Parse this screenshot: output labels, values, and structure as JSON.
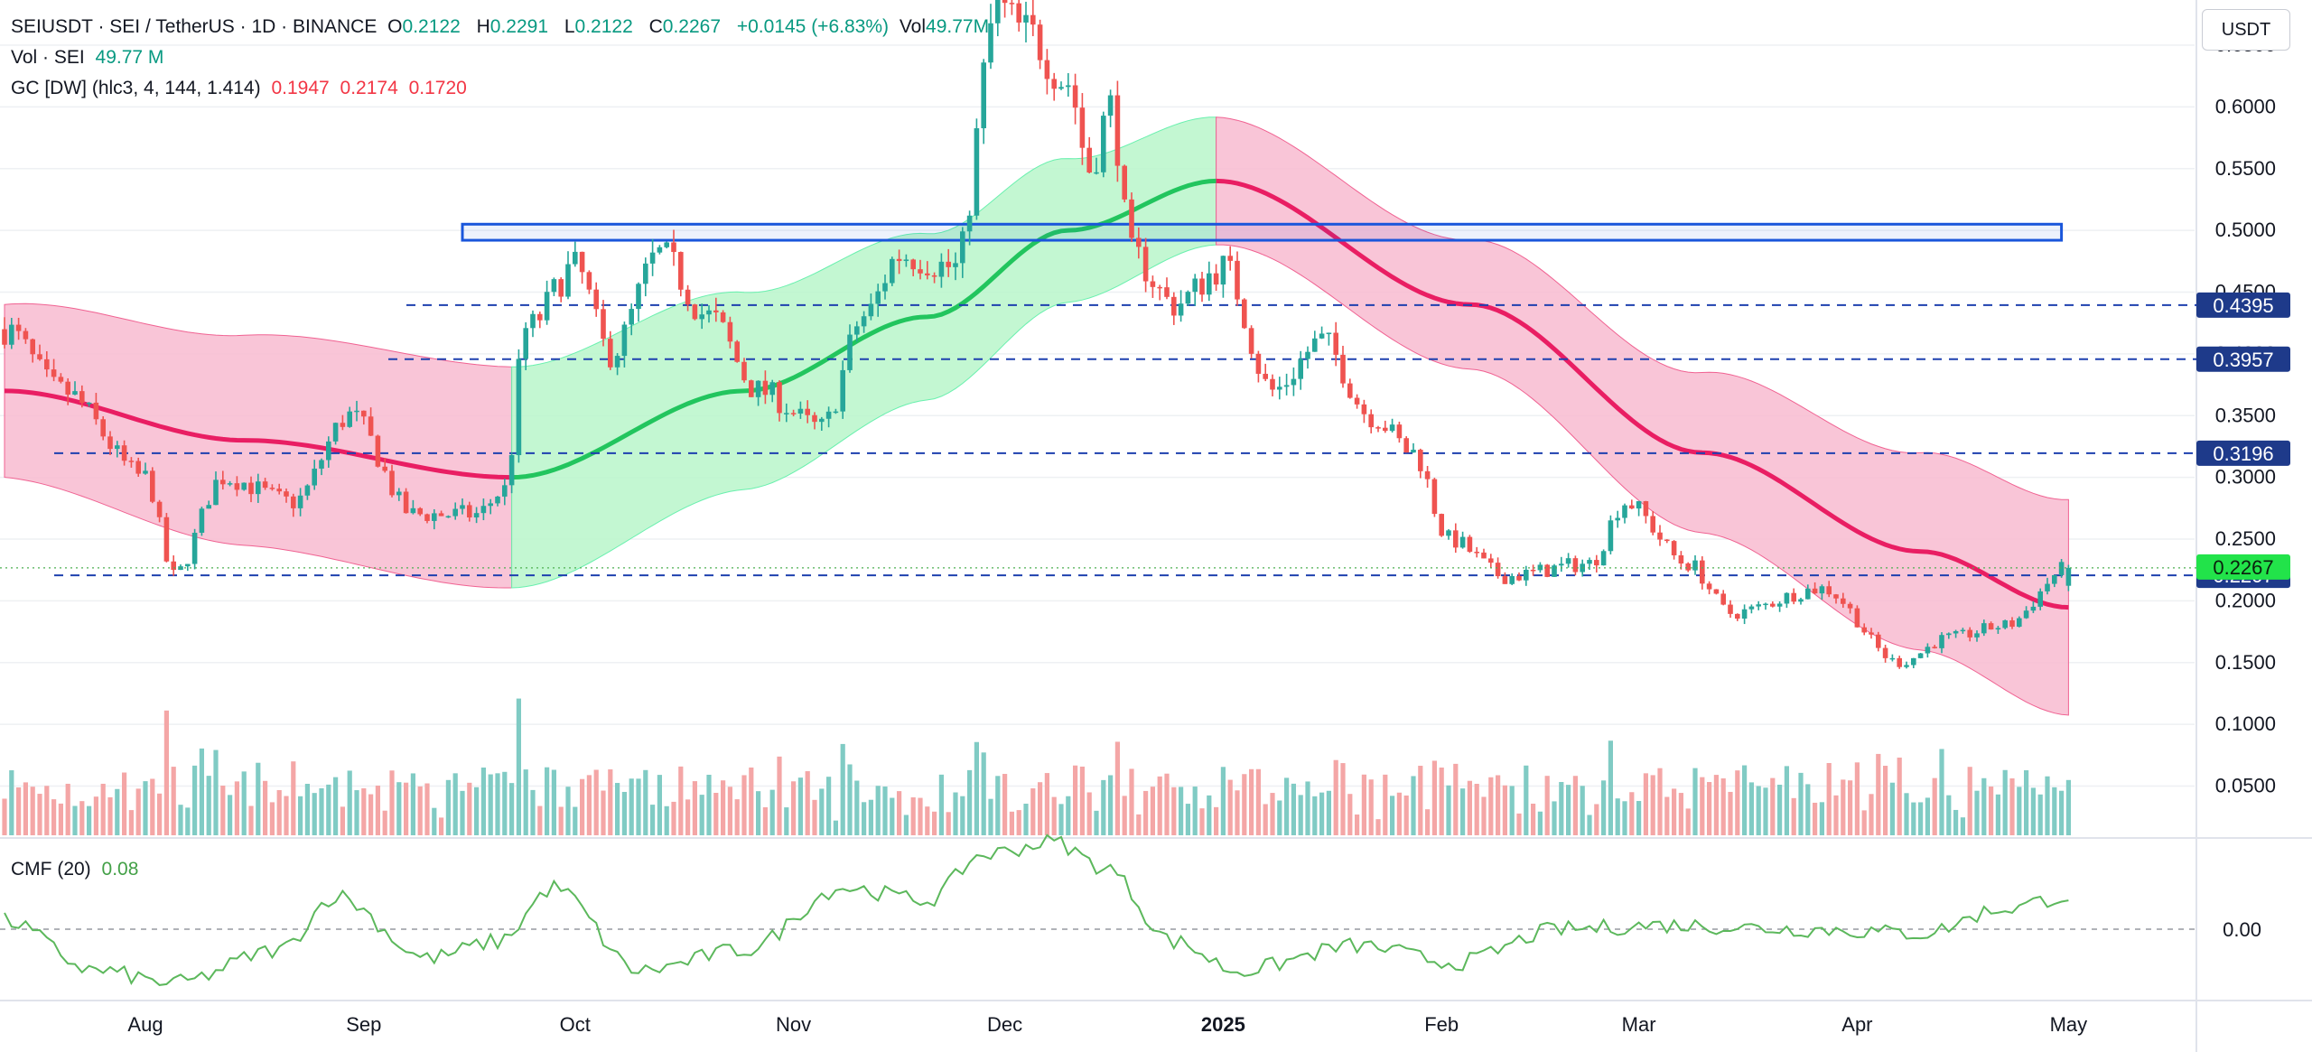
{
  "legend": {
    "symbol": "SEIUSDT · SEI / TetherUS · 1D · BINANCE",
    "o_label": "O",
    "o_val": "0.2122",
    "h_label": "H",
    "h_val": "0.2291",
    "l_label": "L",
    "l_val": "0.2122",
    "c_label": "C",
    "c_val": "0.2267",
    "change": "+0.0145 (+6.83%)",
    "vol_label": "Vol",
    "vol_val": "49.77M",
    "vol_line_label": "Vol · SEI",
    "vol_line_val": "49.77 M",
    "gc_label": "GC [DW] (hlc3, 4, 144, 1.414)",
    "gc_v1": "0.1947",
    "gc_v2": "0.2174",
    "gc_v3": "0.1720",
    "cmf_label": "CMF (20)",
    "cmf_val": "0.08"
  },
  "currency_button": "USDT",
  "colors": {
    "up": "#26a69a",
    "down": "#ef5350",
    "vol_up": "#80cbc4",
    "vol_down": "#f4a6a6",
    "band_red": "#f8bbd0",
    "mid_red": "#e91e63",
    "band_green": "#b9f6ca",
    "mid_green": "#22c55e",
    "level": "#1e40af",
    "zone": "#1a56db",
    "cmf": "#5cb85c",
    "price_tag_green": "#22e34a"
  },
  "chart_data": {
    "type": "candlestick",
    "symbol": "SEIUSDT",
    "interval": "1D",
    "y_axis_scale": "linear",
    "ylim": [
      0.05,
      0.69
    ],
    "y_ticks": [
      "0.6500",
      "0.6000",
      "0.5500",
      "0.5000",
      "0.4500",
      "0.4000",
      "0.3500",
      "0.3000",
      "0.2500",
      "0.2000",
      "0.1500",
      "0.1000",
      "0.0500"
    ],
    "x_ticks": [
      "Aug",
      "Sep",
      "Oct",
      "Nov",
      "Dec",
      "2025",
      "Feb",
      "Mar",
      "Apr",
      "May"
    ],
    "date_range": [
      "2024-07-12",
      "2025-05-01"
    ],
    "price_path_anchors": [
      [
        "2024-07-12",
        0.42
      ],
      [
        "2024-07-20",
        0.37
      ],
      [
        "2024-08-01",
        0.3
      ],
      [
        "2024-08-05",
        0.22
      ],
      [
        "2024-08-12",
        0.3
      ],
      [
        "2024-08-22",
        0.28
      ],
      [
        "2024-08-30",
        0.35
      ],
      [
        "2024-09-08",
        0.27
      ],
      [
        "2024-09-17",
        0.27
      ],
      [
        "2024-09-21",
        0.29
      ],
      [
        "2024-09-24",
        0.42
      ],
      [
        "2024-10-01",
        0.47
      ],
      [
        "2024-10-06",
        0.4
      ],
      [
        "2024-10-13",
        0.48
      ],
      [
        "2024-10-20",
        0.43
      ],
      [
        "2024-10-27",
        0.37
      ],
      [
        "2024-11-05",
        0.34
      ],
      [
        "2024-11-11",
        0.43
      ],
      [
        "2024-11-16",
        0.48
      ],
      [
        "2024-11-24",
        0.47
      ],
      [
        "2024-11-30",
        0.68
      ],
      [
        "2024-12-04",
        0.66
      ],
      [
        "2024-12-10",
        0.62
      ],
      [
        "2024-12-13",
        0.55
      ],
      [
        "2024-12-16",
        0.6
      ],
      [
        "2024-12-19",
        0.48
      ],
      [
        "2024-12-25",
        0.44
      ],
      [
        "2025-01-01",
        0.47
      ],
      [
        "2025-01-08",
        0.37
      ],
      [
        "2025-01-15",
        0.41
      ],
      [
        "2025-01-22",
        0.35
      ],
      [
        "2025-01-28",
        0.32
      ],
      [
        "2025-02-02",
        0.25
      ],
      [
        "2025-02-10",
        0.22
      ],
      [
        "2025-02-22",
        0.23
      ],
      [
        "2025-02-27",
        0.28
      ],
      [
        "2025-03-08",
        0.23
      ],
      [
        "2025-03-14",
        0.19
      ],
      [
        "2025-03-27",
        0.21
      ],
      [
        "2025-04-07",
        0.15
      ],
      [
        "2025-04-14",
        0.17
      ],
      [
        "2025-04-22",
        0.18
      ],
      [
        "2025-05-01",
        0.2267
      ]
    ],
    "gaussian_channel": {
      "mid_anchors": [
        [
          "2024-07-12",
          0.37
        ],
        [
          "2024-08-15",
          0.33
        ],
        [
          "2024-09-22",
          0.3
        ],
        [
          "2024-10-25",
          0.37
        ],
        [
          "2024-11-20",
          0.43
        ],
        [
          "2024-12-10",
          0.5
        ],
        [
          "2024-12-31",
          0.54
        ],
        [
          "2025-02-05",
          0.44
        ],
        [
          "2025-03-10",
          0.32
        ],
        [
          "2025-04-10",
          0.24
        ],
        [
          "2025-05-01",
          0.1947
        ]
      ],
      "bull_range": [
        "2024-09-22",
        "2024-12-31"
      ]
    },
    "cmf": {
      "label": "CMF (20)",
      "last": 0.08,
      "anchors": [
        [
          "2024-07-12",
          0.02
        ],
        [
          "2024-07-25",
          -0.1
        ],
        [
          "2024-08-05",
          -0.13
        ],
        [
          "2024-08-20",
          -0.05
        ],
        [
          "2024-08-28",
          0.08
        ],
        [
          "2024-09-10",
          -0.07
        ],
        [
          "2024-09-20",
          -0.03
        ],
        [
          "2024-09-28",
          0.1
        ],
        [
          "2024-10-10",
          -0.1
        ],
        [
          "2024-10-25",
          -0.05
        ],
        [
          "2024-11-08",
          0.1
        ],
        [
          "2024-11-20",
          0.07
        ],
        [
          "2024-11-28",
          0.18
        ],
        [
          "2024-12-08",
          0.21
        ],
        [
          "2024-12-15",
          0.15
        ],
        [
          "2024-12-25",
          -0.03
        ],
        [
          "2025-01-03",
          -0.1
        ],
        [
          "2025-01-20",
          -0.04
        ],
        [
          "2025-02-03",
          -0.08
        ],
        [
          "2025-02-18",
          0.0
        ],
        [
          "2025-03-05",
          0.01
        ],
        [
          "2025-03-25",
          0.0
        ],
        [
          "2025-04-10",
          -0.01
        ],
        [
          "2025-04-22",
          0.05
        ],
        [
          "2025-05-01",
          0.08
        ]
      ]
    },
    "horizontal_levels": [
      {
        "price": 0.69,
        "label": ""
      },
      {
        "price": 0.4395,
        "label": "0.4395"
      },
      {
        "price": 0.3957,
        "label": "0.3957"
      },
      {
        "price": 0.3196,
        "label": "0.3196"
      },
      {
        "price": 0.2207,
        "label": "0.2207"
      }
    ],
    "current_price": {
      "value": 0.2267,
      "label": "0.2267"
    },
    "zone": {
      "top": 0.505,
      "bottom": 0.492,
      "start": "2024-09-15",
      "end": "2025-04-30"
    },
    "cmf_axis_label": "0.00"
  }
}
